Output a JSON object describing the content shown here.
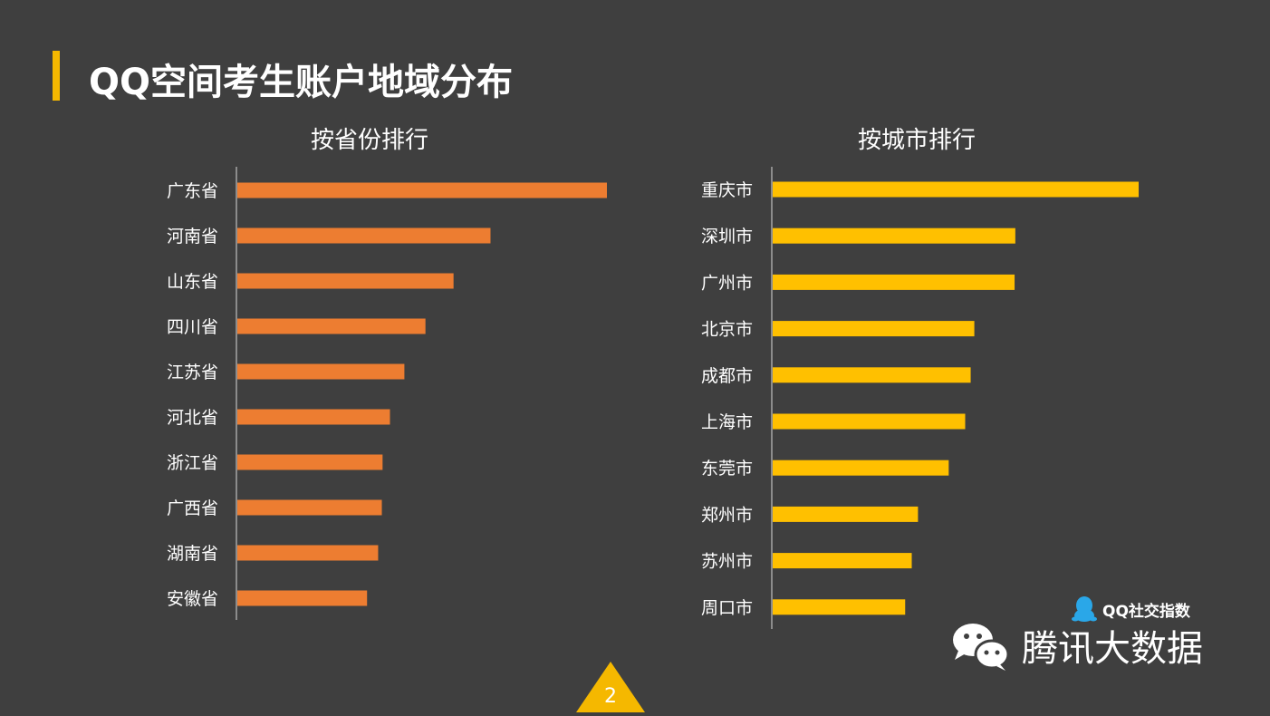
{
  "page": {
    "title": "QQ空间考生账户地域分布",
    "page_number": "2"
  },
  "colors": {
    "background": "#3f3f3f",
    "accent": "#f5b800",
    "province_bar": "#ed7d31",
    "city_bar": "#ffc000"
  },
  "brand": {
    "qq_index_label": "QQ社交指数",
    "wechat_label": "腾讯大数据"
  },
  "chart_data": [
    {
      "type": "bar",
      "orientation": "horizontal",
      "title": "按省份排行",
      "categories": [
        "广东省",
        "河南省",
        "山东省",
        "四川省",
        "江苏省",
        "河北省",
        "浙江省",
        "广西省",
        "湖南省",
        "安徽省"
      ],
      "values": [
        100,
        68.5,
        58.5,
        50.9,
        45.2,
        41.3,
        39.3,
        39.1,
        38.1,
        35.1
      ],
      "xlabel": "",
      "ylabel": "",
      "xlim": [
        0,
        100
      ],
      "grid": false,
      "legend": "none"
    },
    {
      "type": "bar",
      "orientation": "horizontal",
      "title": "按城市排行",
      "categories": [
        "重庆市",
        "深圳市",
        "广州市",
        "北京市",
        "成都市",
        "上海市",
        "东莞市",
        "郑州市",
        "苏州市",
        "周口市"
      ],
      "values": [
        100,
        66.3,
        66.1,
        55.1,
        54.1,
        52.6,
        48.1,
        39.7,
        38.0,
        36.2
      ],
      "xlabel": "",
      "ylabel": "",
      "xlim": [
        0,
        100
      ],
      "grid": false,
      "legend": "none"
    }
  ]
}
